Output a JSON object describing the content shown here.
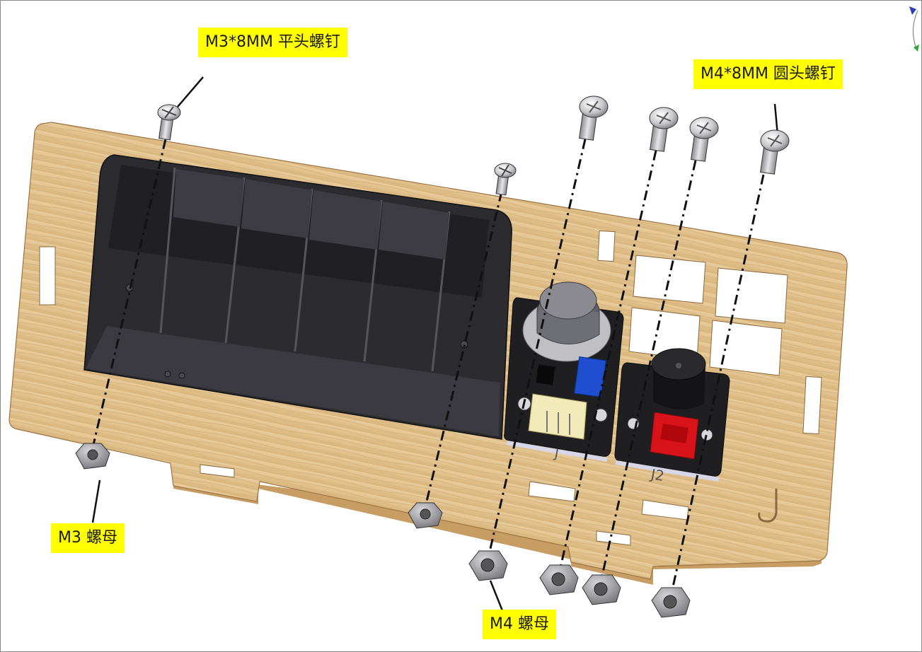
{
  "labels": {
    "m3_screw": "M3*8MM 平头螺钉",
    "m4_screw": "M4*8MM 圆头螺钉",
    "m3_nut": "M3 螺母",
    "m4_nut": "M4 螺母"
  },
  "module_marks": {
    "sensor_port": "J",
    "buzzer_port": "J2",
    "plate_mark": "J"
  },
  "colors": {
    "label_bg": "#ffff00",
    "plate_wood": "#e2c28f",
    "battery_box": "#2e2e33",
    "pcb": "#1f1f22",
    "potentiometer": "#1f4fd0",
    "connector_cream": "#f2eab8",
    "connector_red": "#d8141a",
    "screw_metal": "#c8c8cc"
  },
  "icons": {
    "view_triad": "axis-triad-icon"
  }
}
